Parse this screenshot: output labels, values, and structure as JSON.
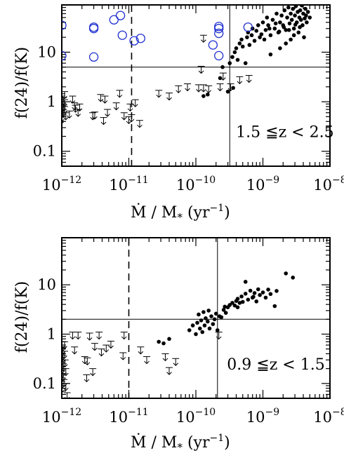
{
  "figure": {
    "ylabel": "f(24)/f(K)",
    "xlabel_main": "Ṁ / M",
    "xlabel_sub": "*",
    "xlabel_unit_pre": "(yr",
    "xlabel_unit_exp": "−1",
    "xlabel_unit_post": ")"
  },
  "chart_data": [
    {
      "type": "scatter",
      "annotation": "1.5 ≦z < 2.5",
      "xlim": [
        1e-12,
        1e-08
      ],
      "ylim": [
        0.05,
        90
      ],
      "xscale": "log",
      "yscale": "log",
      "x_ticks": [
        {
          "base": "10",
          "exp": "−12"
        },
        {
          "base": "10",
          "exp": "−11"
        },
        {
          "base": "10",
          "exp": "−10"
        },
        {
          "base": "10",
          "exp": "−9"
        },
        {
          "base": "10",
          "exp": "−8"
        }
      ],
      "y_ticks": [
        "10",
        "1",
        "0.1"
      ],
      "reference_lines": {
        "vertical_dashed": 1.1e-11,
        "vertical_solid": 3.2e-10,
        "horizontal_solid": 5
      },
      "series": [
        {
          "marker": "filled-circle",
          "color": "#000000",
          "points": [
            [
              1.3e-10,
              1.3
            ],
            [
              1.5e-10,
              1.4
            ],
            [
              2.3e-10,
              3
            ],
            [
              2.5e-10,
              5
            ],
            [
              3e-10,
              1.6
            ],
            [
              3.2e-10,
              6
            ],
            [
              3.5e-10,
              8
            ],
            [
              3.6e-10,
              1.9
            ],
            [
              3.8e-10,
              10
            ],
            [
              4e-10,
              12
            ],
            [
              4.2e-10,
              7
            ],
            [
              4.5e-10,
              15
            ],
            [
              4.8e-10,
              18
            ],
            [
              5e-10,
              13
            ],
            [
              5.5e-10,
              6
            ],
            [
              5.8e-10,
              20
            ],
            [
              6e-10,
              25
            ],
            [
              6.3e-10,
              14
            ],
            [
              6.8e-10,
              22
            ],
            [
              7e-10,
              30
            ],
            [
              7.5e-10,
              17
            ],
            [
              8e-10,
              27
            ],
            [
              8.5e-10,
              35
            ],
            [
              9e-10,
              20
            ],
            [
              9.5e-10,
              23
            ],
            [
              1e-09,
              40
            ],
            [
              1.05e-09,
              18
            ],
            [
              1.1e-09,
              28
            ],
            [
              1.15e-09,
              50
            ],
            [
              1.2e-09,
              35
            ],
            [
              1.3e-09,
              22
            ],
            [
              1.4e-09,
              45
            ],
            [
              1.5e-09,
              30
            ],
            [
              1.6e-09,
              60
            ],
            [
              1.7e-09,
              25
            ],
            [
              1.8e-09,
              40
            ],
            [
              1.9e-09,
              55
            ],
            [
              2e-09,
              35
            ],
            [
              2.1e-09,
              70
            ],
            [
              2.2e-09,
              28
            ],
            [
              2.3e-09,
              50
            ],
            [
              2.4e-09,
              80
            ],
            [
              2.5e-09,
              38
            ],
            [
              2.6e-09,
              60
            ],
            [
              2.7e-09,
              45
            ],
            [
              2.8e-09,
              75
            ],
            [
              2.9e-09,
              30
            ],
            [
              3e-09,
              55
            ],
            [
              3.1e-09,
              85
            ],
            [
              3.2e-09,
              40
            ],
            [
              3.3e-09,
              65
            ],
            [
              3.4e-09,
              25
            ],
            [
              3.5e-09,
              50
            ],
            [
              3.6e-09,
              70
            ],
            [
              3.7e-09,
              45
            ],
            [
              3.8e-09,
              88
            ],
            [
              3.9e-09,
              35
            ],
            [
              4e-09,
              60
            ],
            [
              4.1e-09,
              20
            ],
            [
              4.2e-09,
              48
            ],
            [
              4.3e-09,
              75
            ],
            [
              4.4e-09,
              55
            ],
            [
              2.2e-09,
              15
            ],
            [
              1.8e-09,
              12
            ],
            [
              2.6e-09,
              18
            ],
            [
              1.3e-09,
              9
            ],
            [
              2.9e-09,
              22
            ],
            [
              4.5e-09,
              40
            ],
            [
              4.7e-09,
              65
            ],
            [
              5e-09,
              50
            ],
            [
              1.75e-09,
              26
            ],
            [
              2.05e-09,
              32
            ],
            [
              2.45e-09,
              28
            ],
            [
              3.05e-09,
              36
            ],
            [
              3.55e-09,
              32
            ],
            [
              1.55e-09,
              38
            ],
            [
              1.25e-09,
              30
            ]
          ]
        },
        {
          "marker": "open-circle",
          "color": "#1f2fd0",
          "points": [
            [
              1e-12,
              35
            ],
            [
              1e-12,
              8.5
            ],
            [
              3e-12,
              30
            ],
            [
              3e-12,
              32
            ],
            [
              3e-12,
              8
            ],
            [
              6e-12,
              45
            ],
            [
              7.5e-12,
              55
            ],
            [
              8e-12,
              22
            ],
            [
              1.2e-11,
              17
            ],
            [
              1.5e-11,
              19
            ],
            [
              1.8e-10,
              14
            ],
            [
              2.2e-10,
              30
            ],
            [
              2.2e-10,
              33
            ],
            [
              2.2e-10,
              24
            ],
            [
              2.2e-10,
              8.5
            ],
            [
              6e-10,
              32
            ]
          ]
        },
        {
          "marker": "upper-limit-arrow",
          "color": "#000000",
          "points": [
            [
              1e-12,
              1.3
            ],
            [
              1e-12,
              1.0
            ],
            [
              1e-12,
              0.85
            ],
            [
              1e-12,
              0.75
            ],
            [
              1e-12,
              0.65
            ],
            [
              1e-12,
              0.55
            ],
            [
              1e-12,
              0.5
            ],
            [
              1e-12,
              1.45
            ],
            [
              1.05e-12,
              1.2
            ],
            [
              1.05e-12,
              0.9
            ],
            [
              1.05e-12,
              0.7
            ],
            [
              1.1e-12,
              1.6
            ],
            [
              1.1e-12,
              1.1
            ],
            [
              1.1e-12,
              0.8
            ],
            [
              1.15e-12,
              0.6
            ],
            [
              1.3e-12,
              0.65
            ],
            [
              1.45e-12,
              1.3
            ],
            [
              1.55e-12,
              0.95
            ],
            [
              1.6e-12,
              0.85
            ],
            [
              1.75e-12,
              0.7
            ],
            [
              1.85e-12,
              0.9
            ],
            [
              2.9e-12,
              0.6
            ],
            [
              3.1e-12,
              0.62
            ],
            [
              3.8e-12,
              1.4
            ],
            [
              4.2e-12,
              0.48
            ],
            [
              4.4e-12,
              1.3
            ],
            [
              4.8e-12,
              0.7
            ],
            [
              6.5e-12,
              0.95
            ],
            [
              7.3e-12,
              1.7
            ],
            [
              8.5e-12,
              0.6
            ],
            [
              1e-11,
              0.5
            ],
            [
              1.05e-11,
              0.9
            ],
            [
              1.1e-11,
              0.55
            ],
            [
              1.25e-11,
              1.1
            ],
            [
              1.45e-11,
              0.42
            ],
            [
              2.8e-11,
              1.7
            ],
            [
              4e-11,
              1.5
            ],
            [
              5.5e-11,
              2.1
            ],
            [
              7.5e-11,
              2.3
            ],
            [
              1.1e-10,
              2.2
            ],
            [
              1.3e-10,
              2.2
            ],
            [
              1.2e-10,
              5.2
            ],
            [
              1.3e-10,
              22
            ],
            [
              1.55e-10,
              2.1
            ],
            [
              2.3e-10,
              2.3
            ],
            [
              3.3e-10,
              2.3
            ],
            [
              4.5e-10,
              3.2
            ],
            [
              6.2e-10,
              3.4
            ],
            [
              2.55e-10,
              3.8
            ]
          ]
        }
      ]
    },
    {
      "type": "scatter",
      "annotation": "0.9 ≦z < 1.5",
      "xlim": [
        1e-12,
        1e-08
      ],
      "ylim": [
        0.05,
        90
      ],
      "xscale": "log",
      "yscale": "log",
      "x_ticks": [
        {
          "base": "10",
          "exp": "−12"
        },
        {
          "base": "10",
          "exp": "−11"
        },
        {
          "base": "10",
          "exp": "−10"
        },
        {
          "base": "10",
          "exp": "−9"
        },
        {
          "base": "10",
          "exp": "−8"
        }
      ],
      "y_ticks": [
        "10",
        "1",
        "0.1"
      ],
      "reference_lines": {
        "vertical_dashed": 1e-11,
        "vertical_solid": 2.1e-10,
        "horizontal_solid": 2
      },
      "series": [
        {
          "marker": "filled-circle",
          "color": "#000000",
          "points": [
            [
              2.8e-11,
              0.7
            ],
            [
              3.3e-11,
              0.65
            ],
            [
              4e-11,
              0.8
            ],
            [
              8e-11,
              1.2
            ],
            [
              9e-11,
              1.5
            ],
            [
              1e-10,
              1.0
            ],
            [
              1.05e-10,
              1.7
            ],
            [
              1.1e-10,
              2.5
            ],
            [
              1.15e-10,
              1.3
            ],
            [
              1.2e-10,
              1.9
            ],
            [
              1.25e-10,
              1.1
            ],
            [
              1.3e-10,
              2.8
            ],
            [
              1.35e-10,
              1.5
            ],
            [
              1.4e-10,
              2.1
            ],
            [
              1.5e-10,
              1.8
            ],
            [
              1.55e-10,
              3
            ],
            [
              1.6e-10,
              1.3
            ],
            [
              1.7e-10,
              2.3
            ],
            [
              1.8e-10,
              1.6
            ],
            [
              1.9e-10,
              2
            ],
            [
              2e-10,
              2.6
            ],
            [
              2.1e-10,
              1.2
            ],
            [
              2.25e-10,
              2.3
            ],
            [
              2.4e-10,
              2.2
            ],
            [
              2.6e-10,
              3.1
            ],
            [
              2.8e-10,
              2.7
            ],
            [
              3e-10,
              3.5
            ],
            [
              3.2e-10,
              3.9
            ],
            [
              3.5e-10,
              4.3
            ],
            [
              3.8e-10,
              3.8
            ],
            [
              4e-10,
              4.7
            ],
            [
              4.2e-10,
              5.2
            ],
            [
              4.5e-10,
              4.3
            ],
            [
              4.8e-10,
              5.8
            ],
            [
              5e-10,
              4.5
            ],
            [
              5.5e-10,
              6.6
            ],
            [
              6e-10,
              5
            ],
            [
              6.5e-10,
              7.6
            ],
            [
              7e-10,
              5.5
            ],
            [
              7.5e-10,
              6.8
            ],
            [
              8e-10,
              4.6
            ],
            [
              8.5e-10,
              8.1
            ],
            [
              9e-10,
              6.2
            ],
            [
              1e-09,
              7
            ],
            [
              1.1e-09,
              5.5
            ],
            [
              1.2e-09,
              8
            ],
            [
              1.3e-09,
              6.5
            ],
            [
              1.5e-09,
              3.7
            ],
            [
              1.6e-09,
              7.5
            ],
            [
              2.2e-09,
              17
            ],
            [
              2.8e-09,
              14
            ],
            [
              5.5e-10,
              11.5
            ],
            [
              7.2e-10,
              5.7
            ],
            [
              4.2e-10,
              3.5
            ],
            [
              2.7e-10,
              3.6
            ]
          ]
        },
        {
          "marker": "upper-limit-arrow",
          "color": "#000000",
          "points": [
            [
              1e-12,
              0.7
            ],
            [
              1e-12,
              0.6
            ],
            [
              1e-12,
              0.5
            ],
            [
              1e-12,
              0.4
            ],
            [
              1e-12,
              0.33
            ],
            [
              1e-12,
              0.27
            ],
            [
              1e-12,
              0.22
            ],
            [
              1e-12,
              0.18
            ],
            [
              1e-12,
              0.15
            ],
            [
              1e-12,
              0.13
            ],
            [
              1e-12,
              0.11
            ],
            [
              1e-12,
              0.09
            ],
            [
              1.03e-12,
              0.55
            ],
            [
              1.03e-12,
              0.37
            ],
            [
              1.05e-12,
              0.25
            ],
            [
              1.05e-12,
              0.16
            ],
            [
              1.08e-12,
              0.12
            ],
            [
              1.1e-12,
              0.7
            ],
            [
              1.1e-12,
              0.45
            ],
            [
              1.12e-12,
              0.3
            ],
            [
              1.15e-12,
              0.2
            ],
            [
              1.15e-12,
              0.1
            ],
            [
              1.2e-12,
              0.065
            ],
            [
              1.45e-12,
              1.1
            ],
            [
              1.55e-12,
              0.55
            ],
            [
              1.75e-12,
              1.1
            ],
            [
              2.2e-12,
              0.35
            ],
            [
              2.35e-12,
              0.15
            ],
            [
              2.4e-12,
              0.33
            ],
            [
              2.6e-12,
              1.05
            ],
            [
              2.9e-12,
              0.2
            ],
            [
              3.1e-12,
              0.65
            ],
            [
              3.6e-12,
              1.1
            ],
            [
              3.9e-12,
              0.5
            ],
            [
              4.6e-12,
              0.6
            ],
            [
              5.4e-12,
              0.72
            ],
            [
              8.5e-12,
              1.1
            ],
            [
              8.2e-12,
              0.42
            ],
            [
              1.5e-11,
              0.55
            ],
            [
              1.85e-11,
              0.35
            ],
            [
              3.5e-11,
              0.4
            ],
            [
              4e-11,
              0.21
            ],
            [
              5e-11,
              0.32
            ],
            [
              2.2e-10,
              1.1
            ]
          ]
        }
      ]
    }
  ]
}
